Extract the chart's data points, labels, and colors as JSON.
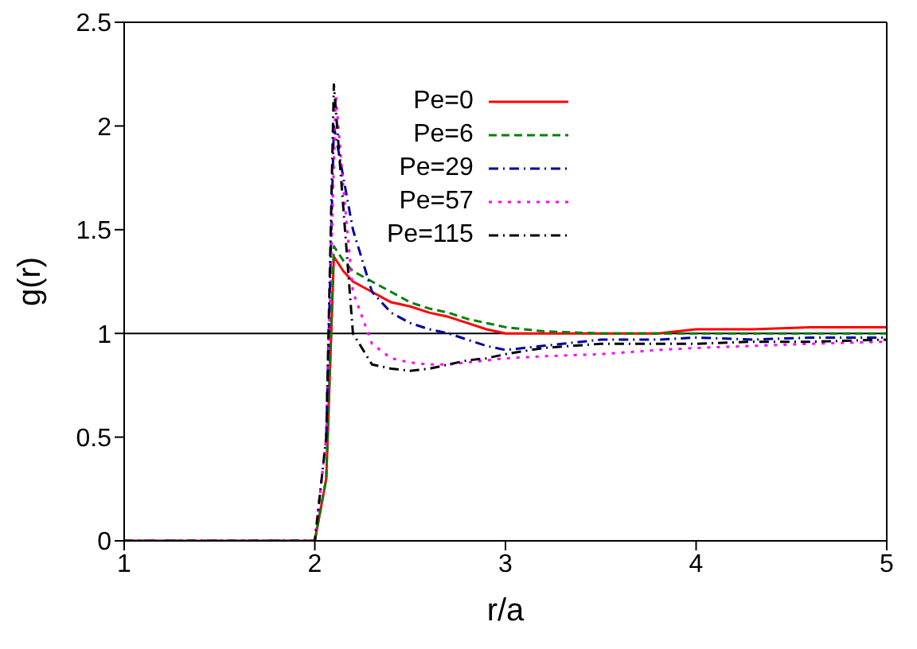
{
  "chart_data": {
    "type": "line",
    "xlabel": "r/a",
    "ylabel": "g(r)",
    "xlim": [
      1,
      5
    ],
    "ylim": [
      0,
      2.5
    ],
    "xticks": [
      1,
      2,
      3,
      4,
      5
    ],
    "yticks": [
      0,
      0.5,
      1,
      1.5,
      2,
      2.5
    ],
    "legend": "top right",
    "grid": false,
    "marker": "none",
    "ref_lines": [
      {
        "axis": "y",
        "value": 1,
        "color": "#000000",
        "line_style": "solid"
      }
    ],
    "series": [
      {
        "name": "Pe=0",
        "color": "#ff0000",
        "line_style": "solid",
        "x": [
          1,
          2.0,
          2.06,
          2.1,
          2.15,
          2.2,
          2.3,
          2.4,
          2.5,
          2.6,
          2.7,
          2.8,
          2.9,
          3,
          3.2,
          3.5,
          3.8,
          4,
          4.3,
          4.6,
          5
        ],
        "values": [
          0,
          0,
          0.3,
          1.37,
          1.3,
          1.25,
          1.2,
          1.15,
          1.13,
          1.1,
          1.08,
          1.05,
          1.02,
          1.0,
          1.0,
          1.0,
          1.0,
          1.02,
          1.02,
          1.03,
          1.03
        ]
      },
      {
        "name": "Pe=6",
        "color": "#008000",
        "line_style": "dashed",
        "x": [
          1,
          2.0,
          2.06,
          2.1,
          2.15,
          2.2,
          2.3,
          2.4,
          2.5,
          2.6,
          2.7,
          2.8,
          2.9,
          3,
          3.2,
          3.5,
          3.8,
          4,
          4.3,
          4.6,
          5
        ],
        "values": [
          0,
          0,
          0.3,
          1.42,
          1.35,
          1.3,
          1.25,
          1.2,
          1.15,
          1.12,
          1.1,
          1.07,
          1.05,
          1.03,
          1.01,
          1.0,
          1.0,
          1.0,
          1.0,
          1.0,
          1.0
        ]
      },
      {
        "name": "Pe=29",
        "color": "#0000a0",
        "line_style": "dashdot",
        "x": [
          2.06,
          2.1,
          2.15,
          2.2,
          2.3,
          2.4,
          2.5,
          2.6,
          2.7,
          2.8,
          2.9,
          3,
          3.2,
          3.5,
          3.8,
          4,
          4.3,
          4.6,
          5
        ],
        "values": [
          0.5,
          2.0,
          1.75,
          1.5,
          1.2,
          1.1,
          1.05,
          1.02,
          1.0,
          0.97,
          0.94,
          0.92,
          0.94,
          0.97,
          0.97,
          0.98,
          0.97,
          0.98,
          0.98
        ]
      },
      {
        "name": "Pe=57",
        "color": "#ff00ff",
        "line_style": "dotted",
        "x": [
          1,
          2.0,
          2.06,
          2.11,
          2.15,
          2.2,
          2.3,
          2.4,
          2.5,
          2.6,
          2.7,
          2.8,
          2.9,
          3,
          3.2,
          3.5,
          3.8,
          4,
          4.3,
          4.6,
          5
        ],
        "values": [
          0,
          0,
          0.5,
          2.15,
          1.7,
          1.2,
          0.95,
          0.88,
          0.86,
          0.85,
          0.85,
          0.86,
          0.87,
          0.88,
          0.89,
          0.9,
          0.92,
          0.93,
          0.94,
          0.95,
          0.96
        ]
      },
      {
        "name": "Pe=115",
        "color": "#000000",
        "line_style": "dashdot",
        "x": [
          1,
          2.0,
          2.06,
          2.1,
          2.15,
          2.2,
          2.3,
          2.4,
          2.5,
          2.6,
          2.7,
          2.8,
          2.9,
          3,
          3.2,
          3.5,
          3.8,
          4,
          4.3,
          4.6,
          5
        ],
        "values": [
          0,
          0,
          0.5,
          2.2,
          1.6,
          1.0,
          0.85,
          0.83,
          0.82,
          0.83,
          0.85,
          0.87,
          0.88,
          0.9,
          0.93,
          0.95,
          0.95,
          0.95,
          0.96,
          0.96,
          0.97
        ]
      }
    ]
  }
}
